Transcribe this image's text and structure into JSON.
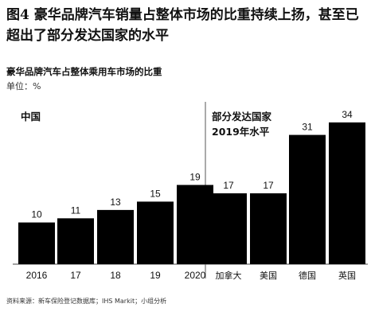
{
  "figure": {
    "title": "图4 豪华品牌汽车销量占整体市场的比重持续上扬，甚至已超出了部分发达国家的水平"
  },
  "chart_data": {
    "type": "bar",
    "title": "豪华品牌汽车占整体乘用车市场的比重",
    "unit": "单位：%",
    "categories": [
      "2016",
      "17",
      "18",
      "19",
      "2020",
      "加拿大",
      "美国",
      "德国",
      "英国"
    ],
    "values": [
      10,
      11,
      13,
      15,
      19,
      17,
      17,
      31,
      34
    ],
    "value_labels": [
      "10",
      "11",
      "13",
      "15",
      "19",
      "17",
      "17",
      "31",
      "34"
    ],
    "groups": [
      {
        "label_lines": [
          "中国"
        ],
        "categories": [
          "2016",
          "17",
          "18",
          "19",
          "2020"
        ]
      },
      {
        "label_lines": [
          "部分发达国家",
          "2019年水平"
        ],
        "categories": [
          "加拿大",
          "美国",
          "德国",
          "英国"
        ]
      }
    ],
    "bar_color": "#000000",
    "ylim": [
      0,
      36
    ],
    "grid": false
  },
  "source": "资料来源：新车保险登记数据库；IHS Markit；小组分析"
}
